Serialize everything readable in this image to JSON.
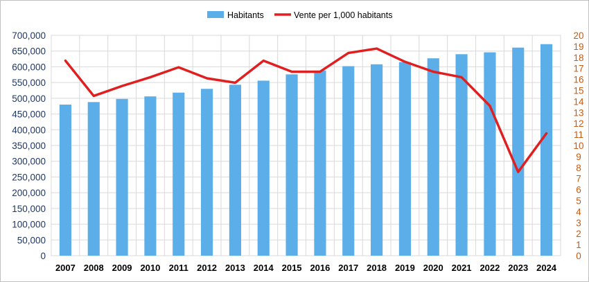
{
  "chart_data": {
    "type": "bar",
    "categories": [
      "2007",
      "2008",
      "2009",
      "2010",
      "2011",
      "2012",
      "2013",
      "2014",
      "2015",
      "2016",
      "2017",
      "2018",
      "2019",
      "2020",
      "2021",
      "2022",
      "2023",
      "2024"
    ],
    "series": [
      {
        "name": "Habitants",
        "type": "bar",
        "axis": "left",
        "color": "#5baee8",
        "values": [
          480000,
          488000,
          498000,
          506000,
          518000,
          530000,
          543000,
          556000,
          576000,
          588000,
          602000,
          608000,
          615000,
          627000,
          640000,
          646000,
          661000,
          672000
        ]
      },
      {
        "name": "Vente per 1,000 habitants",
        "type": "line",
        "axis": "right",
        "color": "#e02020",
        "values": [
          17.7,
          14.5,
          15.4,
          16.2,
          17.1,
          16.1,
          15.7,
          17.7,
          16.7,
          16.7,
          18.4,
          18.8,
          17.6,
          16.7,
          16.2,
          13.6,
          7.6,
          11.1
        ]
      }
    ],
    "y_left": {
      "ylim": [
        0,
        700000
      ],
      "ticks": [
        "0",
        "50,000",
        "100,000",
        "150,000",
        "200,000",
        "250,000",
        "300,000",
        "350,000",
        "400,000",
        "450,000",
        "500,000",
        "550,000",
        "600,000",
        "650,000",
        "700,000"
      ]
    },
    "y_right": {
      "ylim": [
        0,
        20
      ],
      "ticks": [
        "0",
        "1",
        "2",
        "3",
        "4",
        "5",
        "6",
        "7",
        "8",
        "9",
        "10",
        "11",
        "12",
        "13",
        "14",
        "15",
        "16",
        "17",
        "18",
        "19",
        "20"
      ]
    },
    "grid": true,
    "legend_position": "top-center"
  }
}
